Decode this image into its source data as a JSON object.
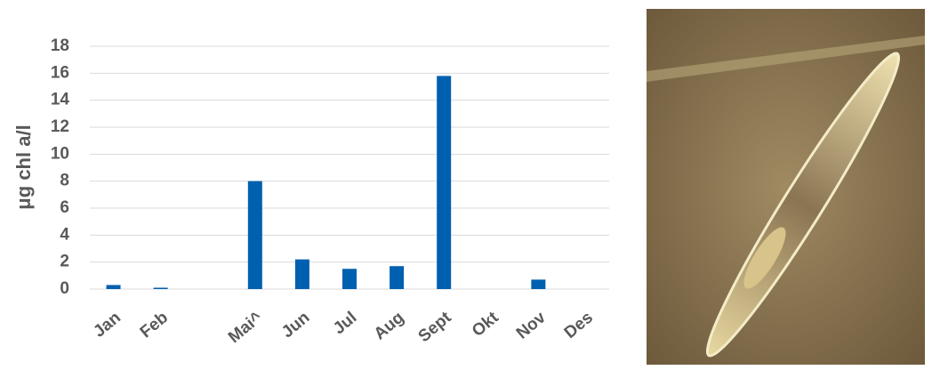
{
  "chart_data": {
    "type": "bar",
    "y_label": "μg chl a/l",
    "categories": [
      "Jan",
      "Feb",
      null,
      "Mai^",
      "Jun",
      "Jul",
      "Aug",
      "Sept",
      "Okt",
      "Nov",
      "Des"
    ],
    "values": [
      0.3,
      0.1,
      null,
      8.0,
      2.2,
      1.5,
      1.7,
      15.8,
      null,
      0.7,
      null
    ],
    "color": "#0060b0",
    "ylim": [
      0,
      18
    ],
    "yticks": [
      0,
      2,
      4,
      6,
      8,
      10,
      12,
      14,
      16,
      18
    ],
    "grid": true
  }
}
